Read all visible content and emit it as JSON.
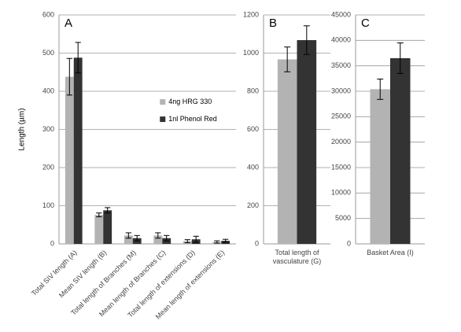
{
  "chart_data": [
    {
      "type": "bar",
      "title": "A",
      "ylabel": "Length (µm)",
      "ylim": [
        0,
        600
      ],
      "yticks": [
        0,
        100,
        200,
        300,
        400,
        500,
        600
      ],
      "grid": true,
      "legend": "center",
      "categories": [
        "Total SIV length (A)",
        "Mean SIV length (B)",
        "Total length of Branches (M)",
        "Mean length of Branches (C)",
        "Total length of extensions (D)",
        "Mean length of extensions (E)"
      ],
      "series": [
        {
          "name": "4ng HRG 330",
          "color": "#b3b3b3",
          "values": [
            438,
            76,
            22,
            22,
            7,
            5
          ],
          "errors": [
            48,
            5,
            7,
            7,
            4,
            3
          ]
        },
        {
          "name": "1nl Phenol Red",
          "color": "#333333",
          "values": [
            488,
            88,
            15,
            15,
            12,
            8
          ],
          "errors": [
            40,
            7,
            7,
            7,
            8,
            4
          ]
        }
      ]
    },
    {
      "type": "bar",
      "title": "B",
      "ylim": [
        0,
        1200
      ],
      "yticks": [
        0,
        200,
        400,
        600,
        800,
        1000,
        1200
      ],
      "grid": true,
      "categories": [
        "Total length of vasculature (G)"
      ],
      "series": [
        {
          "color": "#b3b3b3",
          "values": [
            967
          ],
          "errors": [
            65
          ]
        },
        {
          "color": "#333333",
          "values": [
            1068
          ],
          "errors": [
            75
          ]
        }
      ]
    },
    {
      "type": "bar",
      "title": "C",
      "ylim": [
        0,
        45000
      ],
      "yticks": [
        0,
        5000,
        10000,
        15000,
        20000,
        25000,
        30000,
        35000,
        40000,
        45000
      ],
      "grid": true,
      "categories": [
        "Basket Area (I)"
      ],
      "series": [
        {
          "color": "#b3b3b3",
          "values": [
            30400
          ],
          "errors": [
            2000
          ]
        },
        {
          "color": "#333333",
          "values": [
            36500
          ],
          "errors": [
            3000
          ]
        }
      ]
    }
  ]
}
